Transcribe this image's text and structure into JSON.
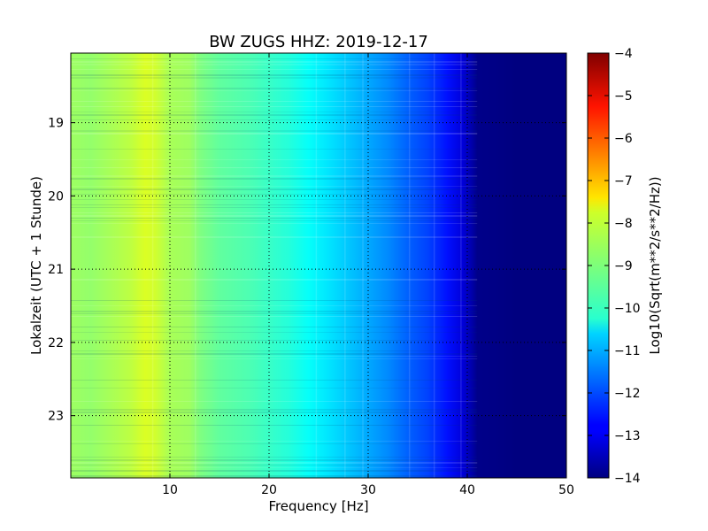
{
  "chart_data": {
    "type": "heatmap",
    "title": "BW ZUGS HHZ: 2019-12-17",
    "xlabel": "Frequency [Hz]",
    "ylabel": "Lokalzeit (UTC + 1 Stunde)",
    "xlim": [
      0,
      50
    ],
    "ylim": [
      18.05,
      23.85
    ],
    "x_ticks": [
      10,
      20,
      30,
      40,
      50
    ],
    "x_tick_labels": [
      "10",
      "20",
      "30",
      "40",
      "50"
    ],
    "y_ticks": [
      19,
      20,
      21,
      22,
      23
    ],
    "y_tick_labels": [
      "19",
      "20",
      "21",
      "22",
      "23"
    ],
    "grid": true,
    "colormap": "jet",
    "colorbar": {
      "label": "Log10(Sqrt(m**2/s**2/Hz))",
      "range": [
        -14,
        -4
      ],
      "ticks": [
        -4,
        -5,
        -6,
        -7,
        -8,
        -9,
        -10,
        -11,
        -12,
        -13,
        -14
      ],
      "tick_labels": [
        "−4",
        "−5",
        "−6",
        "−7",
        "−8",
        "−9",
        "−10",
        "−11",
        "−12",
        "−13",
        "−14"
      ]
    },
    "spectrum_profile": {
      "frequency_hz": [
        0,
        2,
        4,
        6,
        7.5,
        8.5,
        10,
        12,
        13,
        15,
        18,
        20,
        22,
        24,
        26,
        28,
        30,
        32,
        34,
        36,
        38,
        39.5,
        40.5,
        41,
        45,
        50
      ],
      "log10_psd": [
        -8.7,
        -8.8,
        -8.6,
        -8.4,
        -8.1,
        -8.2,
        -8.6,
        -8.7,
        -9.0,
        -9.3,
        -9.5,
        -9.7,
        -9.9,
        -10.2,
        -10.5,
        -10.8,
        -11.1,
        -11.4,
        -11.8,
        -12.1,
        -12.6,
        -13.1,
        -13.6,
        -13.9,
        -14.0,
        -14.0
      ]
    }
  }
}
